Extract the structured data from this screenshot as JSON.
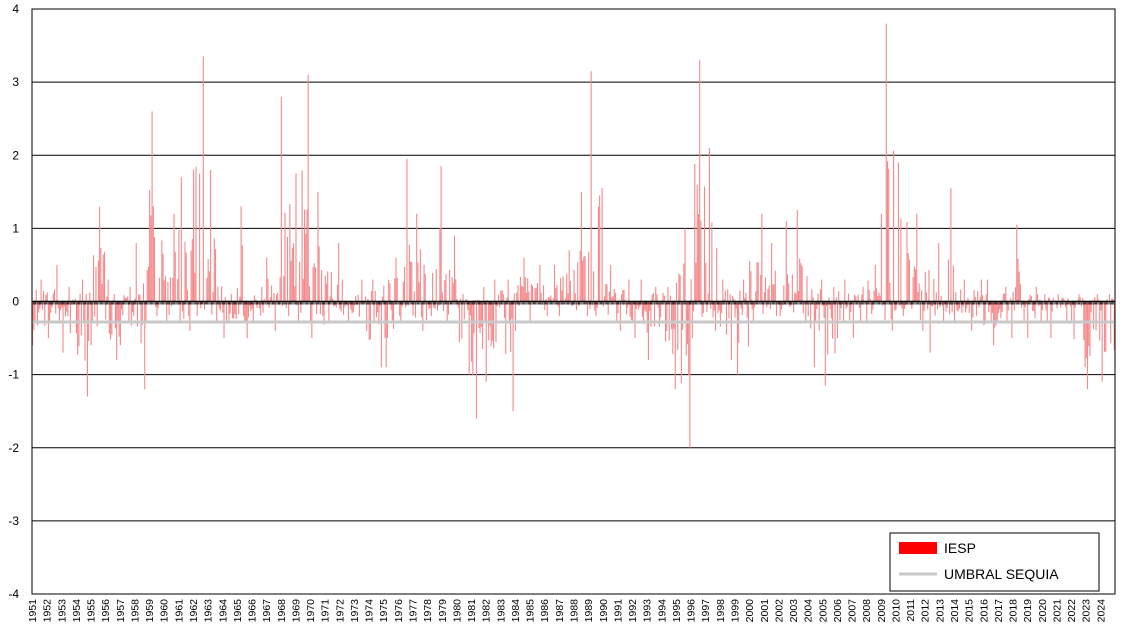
{
  "chart_data": {
    "type": "bar",
    "title": "",
    "xlabel": "",
    "ylabel": "",
    "ylim": [
      -4,
      4
    ],
    "yticks": [
      "-4",
      "-3",
      "-2",
      "-1",
      "0",
      "1",
      "2",
      "3",
      "4"
    ],
    "grid": true,
    "legend_position": "bottom-right",
    "x_start_year": 1951,
    "x_end_year": 2024,
    "x_tick_labels": [
      "1951",
      "1952",
      "1953",
      "1954",
      "1955",
      "1956",
      "1957",
      "1958",
      "1959",
      "1960",
      "1961",
      "1962",
      "1963",
      "1964",
      "1965",
      "1966",
      "1967",
      "1968",
      "1969",
      "1970",
      "1971",
      "1972",
      "1973",
      "1974",
      "1975",
      "1976",
      "1977",
      "1978",
      "1979",
      "1980",
      "1981",
      "1982",
      "1983",
      "1984",
      "1985",
      "1986",
      "1987",
      "1988",
      "1989",
      "1990",
      "1991",
      "1992",
      "1993",
      "1994",
      "1995",
      "1996",
      "1997",
      "1998",
      "1999",
      "2000",
      "2001",
      "2002",
      "2003",
      "2004",
      "2005",
      "2006",
      "2007",
      "2008",
      "2009",
      "2010",
      "2011",
      "2012",
      "2013",
      "2014",
      "2015",
      "2016",
      "2017",
      "2018",
      "2019",
      "2020",
      "2021",
      "2022",
      "2023",
      "2024"
    ],
    "series": [
      {
        "name": "IESP",
        "color": "#ff0000",
        "bar_color": "#f5888a",
        "frequency": "monthly",
        "yearly_approx": {
          "1951": [
            -0.6,
            0.3
          ],
          "1952": [
            -0.5,
            0.5
          ],
          "1953": [
            -0.7,
            0.2
          ],
          "1954": [
            -1.3,
            0.3
          ],
          "1955": [
            -0.6,
            1.3
          ],
          "1956": [
            -0.8,
            0.3
          ],
          "1957": [
            -0.6,
            0.2
          ],
          "1958": [
            -1.2,
            0.8
          ],
          "1959": [
            -0.2,
            2.6
          ],
          "1960": [
            -0.3,
            1.2
          ],
          "1961": [
            -0.4,
            1.7
          ],
          "1962": [
            -0.2,
            3.35
          ],
          "1963": [
            -0.3,
            1.8
          ],
          "1964": [
            -0.5,
            0.1
          ],
          "1965": [
            -0.5,
            1.3
          ],
          "1966": [
            -0.3,
            0.2
          ],
          "1967": [
            -0.4,
            0.6
          ],
          "1968": [
            -0.2,
            2.8
          ],
          "1969": [
            -0.3,
            3.1
          ],
          "1970": [
            -0.5,
            1.5
          ],
          "1971": [
            -0.3,
            0.8
          ],
          "1972": [
            -0.3,
            0.3
          ],
          "1973": [
            -0.4,
            0.3
          ],
          "1974": [
            -0.9,
            0.3
          ],
          "1975": [
            -0.9,
            0.6
          ],
          "1976": [
            -0.3,
            1.95
          ],
          "1977": [
            -0.4,
            1.2
          ],
          "1978": [
            -0.2,
            1.85
          ],
          "1979": [
            -0.3,
            0.9
          ],
          "1980": [
            -1.0,
            0.1
          ],
          "1981": [
            -1.6,
            0.2
          ],
          "1982": [
            -1.1,
            0.3
          ],
          "1983": [
            -1.5,
            0.3
          ],
          "1984": [
            -0.4,
            0.6
          ],
          "1985": [
            -0.3,
            0.5
          ],
          "1986": [
            -0.2,
            0.5
          ],
          "1987": [
            -0.2,
            0.7
          ],
          "1988": [
            -0.2,
            1.5
          ],
          "1989": [
            -0.2,
            3.15
          ],
          "1990": [
            -0.3,
            0.5
          ],
          "1991": [
            -0.4,
            0.3
          ],
          "1992": [
            -0.5,
            0.3
          ],
          "1993": [
            -0.8,
            0.2
          ],
          "1994": [
            -1.2,
            0.2
          ],
          "1995": [
            -2.0,
            1.0
          ],
          "1996": [
            -0.5,
            3.3
          ],
          "1997": [
            -0.4,
            2.1
          ],
          "1998": [
            -0.8,
            0.3
          ],
          "1999": [
            -1.0,
            0.3
          ],
          "2000": [
            -0.3,
            1.2
          ],
          "2001": [
            -0.2,
            0.8
          ],
          "2002": [
            -0.2,
            1.1
          ],
          "2003": [
            -0.3,
            1.25
          ],
          "2004": [
            -0.9,
            0.3
          ],
          "2005": [
            -1.15,
            0.2
          ],
          "2006": [
            -0.5,
            0.3
          ],
          "2007": [
            -0.5,
            0.2
          ],
          "2008": [
            -0.3,
            0.5
          ],
          "2009": [
            -0.4,
            3.8
          ],
          "2010": [
            -0.2,
            1.9
          ],
          "2011": [
            -0.4,
            1.2
          ],
          "2012": [
            -0.7,
            0.8
          ],
          "2013": [
            -0.3,
            1.55
          ],
          "2014": [
            -0.3,
            0.3
          ],
          "2015": [
            -0.4,
            0.3
          ],
          "2016": [
            -0.6,
            0.3
          ],
          "2017": [
            -0.5,
            0.2
          ],
          "2018": [
            -0.3,
            1.05
          ],
          "2019": [
            -0.5,
            0.2
          ],
          "2020": [
            -0.5,
            0.1
          ],
          "2021": [
            -0.3,
            0.1
          ],
          "2022": [
            -0.9,
            0.1
          ],
          "2023": [
            -1.2,
            0.1
          ],
          "2024": [
            -1.1,
            0.1
          ]
        }
      },
      {
        "name": "UMBRAL SEQUIA",
        "color": "#c8c8c8",
        "type": "line",
        "value": -0.28
      }
    ]
  },
  "legend": {
    "items": [
      {
        "label": "IESP",
        "color": "#ff0000",
        "kind": "box"
      },
      {
        "label": "UMBRAL SEQUIA",
        "color": "#c8c8c8",
        "kind": "line"
      }
    ]
  }
}
